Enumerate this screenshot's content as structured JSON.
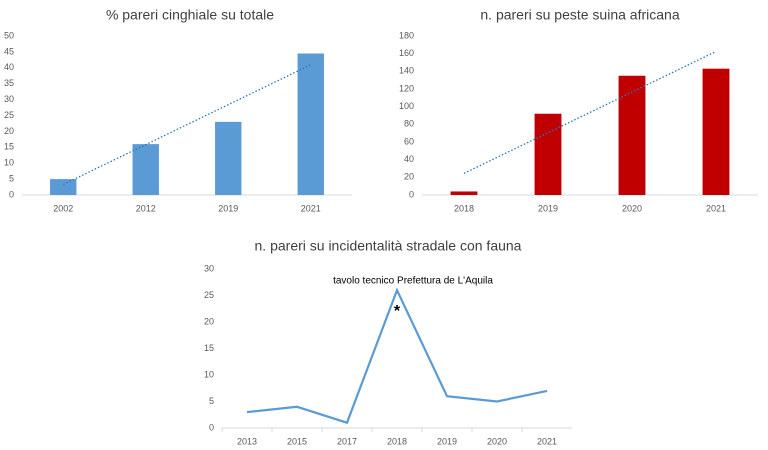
{
  "chart_data": [
    {
      "type": "bar",
      "title": "% pareri cinghiale su totale",
      "categories": [
        "2002",
        "2012",
        "2019",
        "2021"
      ],
      "values": [
        5,
        16,
        23,
        44.5
      ],
      "color": "#5b9bd5",
      "ylim": [
        0,
        50
      ],
      "yticks": [
        0,
        5,
        10,
        15,
        20,
        25,
        30,
        35,
        40,
        45,
        50
      ],
      "grid": false,
      "trendline": true
    },
    {
      "type": "bar",
      "title": "n. pareri su peste suina africana",
      "categories": [
        "2018",
        "2019",
        "2020",
        "2021"
      ],
      "values": [
        4,
        92,
        135,
        143
      ],
      "color": "#c00000",
      "ylim": [
        0,
        180
      ],
      "yticks": [
        0,
        20,
        40,
        60,
        80,
        100,
        120,
        140,
        160,
        180
      ],
      "grid": false,
      "trendline": true
    },
    {
      "type": "line",
      "title": "n. pareri su incidentalità stradale con fauna",
      "categories": [
        "2013",
        "2015",
        "2017",
        "2018",
        "2019",
        "2020",
        "2021"
      ],
      "values": [
        3,
        4,
        1,
        26,
        6,
        5,
        7
      ],
      "color": "#5b9bd5",
      "ylim": [
        0,
        30
      ],
      "yticks": [
        0,
        5,
        10,
        15,
        20,
        25,
        30
      ],
      "grid": false,
      "trendline": false,
      "annotations": [
        "tavolo tecnico Prefettura de L'Aquila",
        "*"
      ]
    }
  ]
}
